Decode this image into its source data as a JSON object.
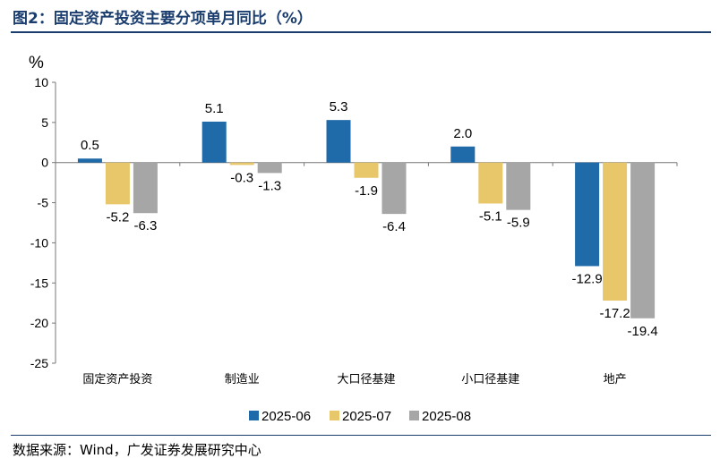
{
  "title": "图2：固定资产投资主要分项单月同比（%）",
  "source": "数据来源：Wind，广发证券发展研究中心",
  "chart_data": {
    "type": "bar",
    "unit_label": "%",
    "categories": [
      "固定资产投资",
      "制造业",
      "大口径基建",
      "小口径基建",
      "地产"
    ],
    "series": [
      {
        "name": "2025-06",
        "color": "#1f6aa8",
        "values": [
          0.5,
          5.1,
          5.3,
          2.0,
          -12.9
        ]
      },
      {
        "name": "2025-07",
        "color": "#e8c66a",
        "values": [
          -5.2,
          -0.3,
          -1.9,
          -5.1,
          -17.2
        ]
      },
      {
        "name": "2025-08",
        "color": "#a6a6a6",
        "values": [
          -6.3,
          -1.3,
          -6.4,
          -5.9,
          -19.4
        ]
      }
    ],
    "data_labels": [
      [
        "0.5",
        "5.1",
        "5.3",
        "2.0",
        "-12.9"
      ],
      [
        "-5.2",
        "-0.3",
        "-1.9",
        "-5.1",
        "-17.2"
      ],
      [
        "-6.3",
        "-1.3",
        "-6.4",
        "-5.9",
        "-19.4"
      ]
    ],
    "ylim": [
      -25,
      10
    ],
    "yticks": [
      10,
      5,
      0,
      -5,
      -10,
      -15,
      -20,
      -25
    ],
    "grid": false,
    "legend_position": "bottom"
  }
}
